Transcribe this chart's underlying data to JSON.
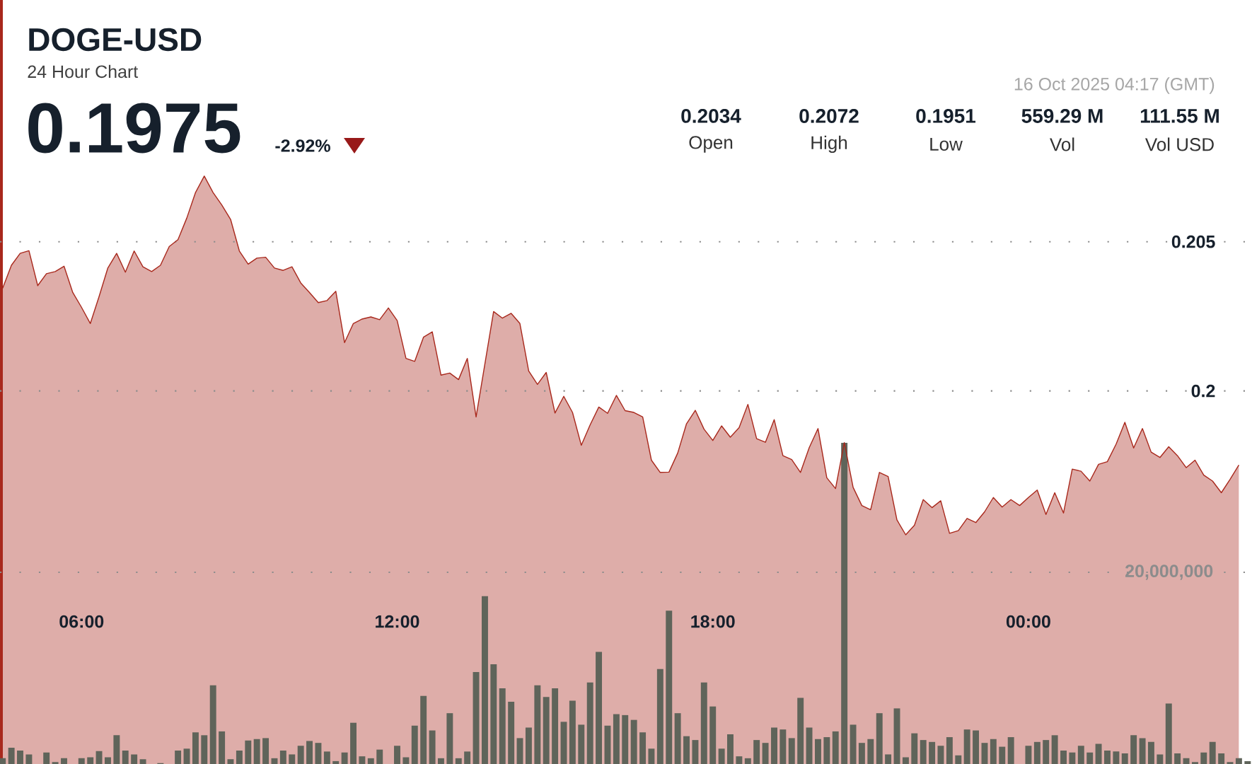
{
  "chart_data": {
    "type": "area",
    "title": "DOGE-USD",
    "subtitle": "24 Hour Chart",
    "annotations": [
      "0.1975",
      "-2.92%",
      "0.2034",
      "Open",
      "0.2072",
      "High",
      "0.1951",
      "Low",
      "559.29 M",
      "Vol",
      "111.55 M",
      "Vol USD",
      "16 Oct 2025 04:17 (GMT)"
    ],
    "x": [
      4.5,
      4.667,
      4.833,
      5,
      5.167,
      5.333,
      5.5,
      5.667,
      5.833,
      6,
      6.167,
      6.333,
      6.5,
      6.667,
      6.833,
      7,
      7.167,
      7.333,
      7.5,
      7.667,
      7.833,
      8,
      8.167,
      8.333,
      8.5,
      8.667,
      8.833,
      9,
      9.167,
      9.333,
      9.5,
      9.667,
      9.833,
      10,
      10.167,
      10.333,
      10.5,
      10.667,
      10.833,
      11,
      11.167,
      11.333,
      11.5,
      11.667,
      11.833,
      12,
      12.167,
      12.333,
      12.5,
      12.667,
      12.833,
      13,
      13.167,
      13.333,
      13.5,
      13.667,
      13.833,
      14,
      14.167,
      14.333,
      14.5,
      14.667,
      14.833,
      15,
      15.167,
      15.333,
      15.5,
      15.667,
      15.833,
      16,
      16.167,
      16.333,
      16.5,
      16.667,
      16.833,
      17,
      17.167,
      17.333,
      17.5,
      17.667,
      17.833,
      18,
      18.167,
      18.333,
      18.5,
      18.667,
      18.833,
      19,
      19.167,
      19.333,
      19.5,
      19.667,
      19.833,
      20,
      20.167,
      20.333,
      20.5,
      20.667,
      20.833,
      21,
      21.167,
      21.333,
      21.5,
      21.667,
      21.833,
      22,
      22.167,
      22.333,
      22.5,
      22.667,
      22.833,
      23,
      23.167,
      23.333,
      23.5,
      23.667,
      23.833,
      24,
      24.167,
      24.333,
      24.5,
      24.667,
      24.833,
      25,
      25.167,
      25.333,
      25.5,
      25.667,
      25.833,
      26,
      26.167,
      26.333,
      26.5,
      26.667,
      26.833,
      27,
      27.167,
      27.333,
      27.5,
      27.667,
      27.833,
      28,
      28.167
    ],
    "series": [
      {
        "axis": "y",
        "color": "#a8281c",
        "values": [
          0.20344,
          0.20421,
          0.20461,
          0.2047,
          0.20353,
          0.20393,
          0.204,
          0.20418,
          0.2033,
          0.2028,
          0.20226,
          0.20316,
          0.20412,
          0.20461,
          0.20398,
          0.20469,
          0.20416,
          0.204,
          0.20421,
          0.20484,
          0.20507,
          0.20579,
          0.20665,
          0.2072,
          0.20665,
          0.20623,
          0.20575,
          0.20469,
          0.20425,
          0.20445,
          0.20448,
          0.20412,
          0.20404,
          0.20416,
          0.20362,
          0.2033,
          0.20296,
          0.20303,
          0.20334,
          0.20162,
          0.20226,
          0.20241,
          0.20248,
          0.20239,
          0.20278,
          0.20236,
          0.20109,
          0.20099,
          0.2018,
          0.20198,
          0.20053,
          0.2006,
          0.20038,
          0.20109,
          0.19913,
          0.2009,
          0.20266,
          0.20244,
          0.2026,
          0.20226,
          0.20067,
          0.20022,
          0.20062,
          0.19926,
          0.19982,
          0.19928,
          0.19818,
          0.19886,
          0.19946,
          0.19925,
          0.19985,
          0.19934,
          0.19928,
          0.19913,
          0.19768,
          0.19727,
          0.19728,
          0.19792,
          0.1989,
          0.19935,
          0.19872,
          0.19834,
          0.19883,
          0.19845,
          0.19877,
          0.19955,
          0.1984,
          0.19828,
          0.19904,
          0.19783,
          0.1977,
          0.19727,
          0.1981,
          0.19874,
          0.19709,
          0.19673,
          0.19827,
          0.19677,
          0.19616,
          0.19602,
          0.19727,
          0.19713,
          0.19568,
          0.19518,
          0.1955,
          0.19636,
          0.19609,
          0.19632,
          0.19523,
          0.19532,
          0.19573,
          0.19559,
          0.19595,
          0.19643,
          0.19611,
          0.19636,
          0.19616,
          0.19643,
          0.19668,
          0.19586,
          0.19659,
          0.19591,
          0.19738,
          0.19731,
          0.19698,
          0.19754,
          0.19763,
          0.19822,
          0.19895,
          0.19809,
          0.19874,
          0.19795,
          0.19777,
          0.19813,
          0.19783,
          0.19743,
          0.19768,
          0.19718,
          0.19698,
          0.19659,
          0.19704,
          0.19752,
          null
        ]
      },
      {
        "type": "bar",
        "axis": "y2",
        "color": "#5f645a",
        "values": [
          600000,
          1700000,
          1400000,
          1000000,
          null,
          1200000,
          200000,
          600000,
          null,
          600000,
          700000,
          1350000,
          700000,
          3000000,
          1400000,
          1000000,
          500000,
          null,
          100000,
          null,
          1400000,
          1600000,
          3300000,
          3000000,
          8200000,
          3400000,
          500000,
          1400000,
          2450000,
          2600000,
          2700000,
          600000,
          1400000,
          1000000,
          1900000,
          2400000,
          2200000,
          1300000,
          300000,
          1200000,
          4300000,
          800000,
          600000,
          1500000,
          null,
          1900000,
          700000,
          4000000,
          7100000,
          3500000,
          600000,
          5300000,
          600000,
          1300000,
          9600000,
          17500000,
          10400000,
          7900000,
          6500000,
          2700000,
          3800000,
          8200000,
          7000000,
          7900000,
          4400000,
          6600000,
          4100000,
          8500000,
          11700000,
          4000000,
          5200000,
          5100000,
          4600000,
          3300000,
          1600000,
          9900000,
          16000000,
          5300000,
          2900000,
          2500000,
          8500000,
          6000000,
          1600000,
          3100000,
          800000,
          600000,
          2500000,
          2200000,
          3800000,
          3600000,
          2700000,
          6900000,
          3800000,
          2600000,
          2800000,
          3400000,
          33500000,
          4100000,
          2200000,
          2600000,
          5300000,
          1000000,
          5800000,
          700000,
          3200000,
          2500000,
          2300000,
          1900000,
          2800000,
          900000,
          3600000,
          3500000,
          2200000,
          2600000,
          1800000,
          2800000,
          null,
          1900000,
          2300000,
          2500000,
          3000000,
          1400000,
          1200000,
          1900000,
          1200000,
          2100000,
          1400000,
          1300000,
          1100000,
          3000000,
          2700000,
          2300000,
          1000000,
          6300000,
          1100000,
          600000,
          200000,
          1200000,
          2300000,
          1100000,
          200000,
          600000,
          300000
        ]
      }
    ],
    "xlim": [
      4.45,
      28.25
    ],
    "xticks": [
      {
        "value": 6,
        "label": "06:00"
      },
      {
        "value": 12,
        "label": "12:00"
      },
      {
        "value": 18,
        "label": "18:00"
      },
      {
        "value": 24,
        "label": "00:00"
      }
    ],
    "ylim": [
      0.1875,
      0.2131
    ],
    "yticks": [
      {
        "value": 0.2,
        "label": "0.2"
      },
      {
        "value": 0.205,
        "label": "0.205"
      }
    ],
    "y2lim": [
      0,
      79700000
    ],
    "y2ticks": [
      {
        "value": 20000000,
        "label": "20,000,000"
      }
    ],
    "grid": "y"
  }
}
